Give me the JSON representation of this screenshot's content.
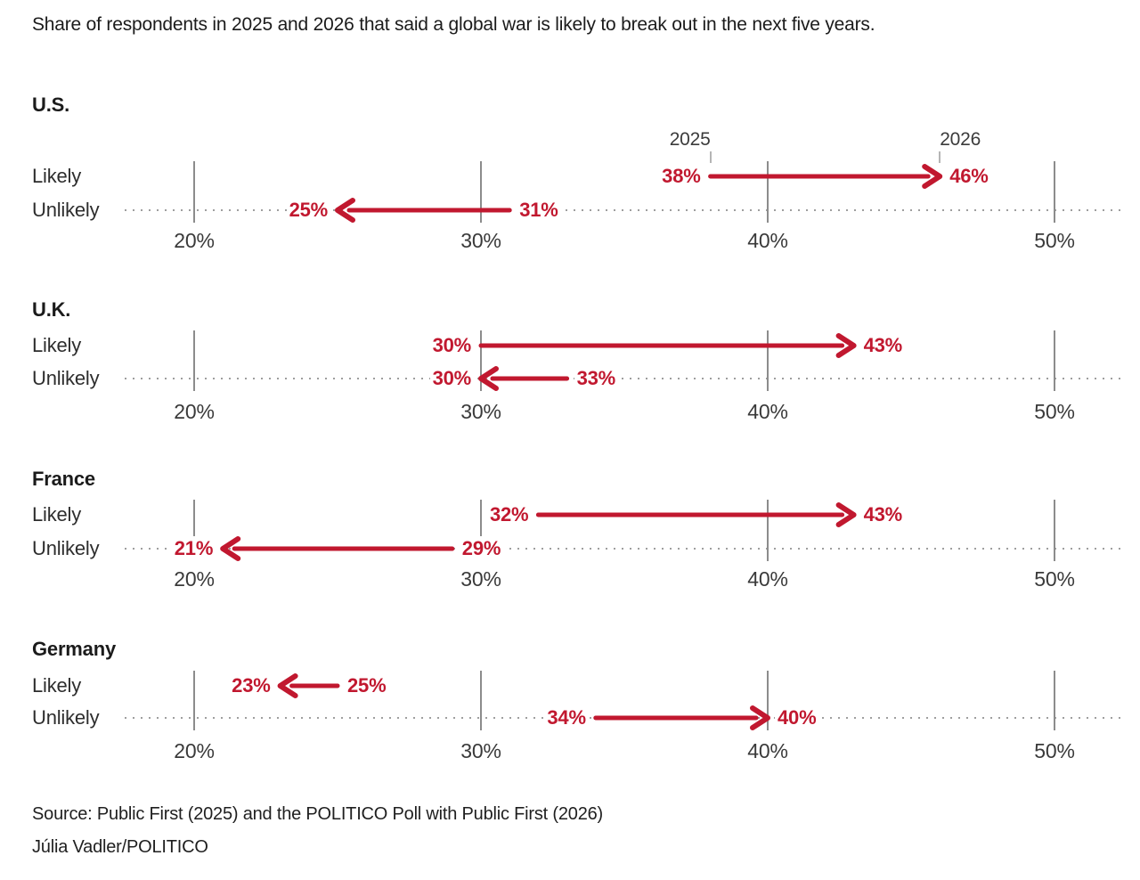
{
  "header": {
    "title": "Share of respondents in 2025 and 2026 that said a global war is likely to break out in the next five years."
  },
  "footer": {
    "source": "Source: Public First (2025) and the POLITICO Poll with Public First (2026)",
    "credit": "Júlia Vadler/POLITICO"
  },
  "chart_data": {
    "type": "arrow",
    "description": "Paired arrow (dumbbell) chart: change from 2025 to 2026 in share saying global war is likely/unlikely in next five years",
    "title": "Share of respondents in 2025 and 2026 that said a global war is likely to break out in the next five years.",
    "xlabel": "",
    "ylabel": "",
    "xlim": [
      17.6,
      52.4
    ],
    "xticks": [
      20,
      30,
      40,
      50
    ],
    "xtick_labels": [
      "20%",
      "30%",
      "40%",
      "50%"
    ],
    "grid": "vertical ticks per panel, dotted leader line on Unlikely rows only",
    "legend_position": "year labels annotated above first panel arrow",
    "years": [
      "2025",
      "2026"
    ],
    "unit": "%",
    "panels": [
      {
        "country": "U.S.",
        "rows": [
          {
            "label": "Likely",
            "v2025": 38,
            "v2026": 46
          },
          {
            "label": "Unlikely",
            "v2025": 31,
            "v2026": 25
          }
        ]
      },
      {
        "country": "U.K.",
        "rows": [
          {
            "label": "Likely",
            "v2025": 30,
            "v2026": 43
          },
          {
            "label": "Unlikely",
            "v2025": 33,
            "v2026": 30
          }
        ]
      },
      {
        "country": "France",
        "rows": [
          {
            "label": "Likely",
            "v2025": 32,
            "v2026": 43
          },
          {
            "label": "Unlikely",
            "v2025": 29,
            "v2026": 21
          }
        ]
      },
      {
        "country": "Germany",
        "rows": [
          {
            "label": "Likely",
            "v2025": 25,
            "v2026": 23
          },
          {
            "label": "Unlikely",
            "v2025": 34,
            "v2026": 40
          }
        ]
      }
    ],
    "colors": {
      "arrow": "#c1182f",
      "value_label": "#c1182f",
      "dotted_line": "#9e9e9e",
      "tick_line": "#8c8c8c",
      "axis_label": "#3a3a3a",
      "text": "#2d2d2d",
      "background": "#ffffff"
    }
  }
}
